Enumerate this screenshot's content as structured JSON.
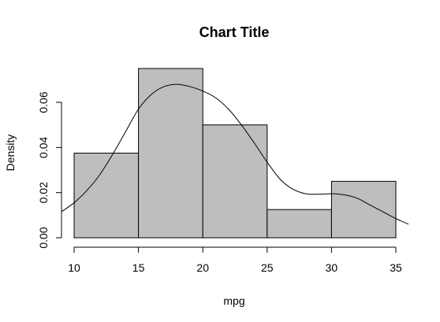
{
  "chart_data": {
    "type": "bar",
    "subtype": "histogram-with-density",
    "title": "Chart Title",
    "xlabel": "mpg",
    "ylabel": "Density",
    "bins": [
      {
        "x0": 10,
        "x1": 15,
        "density": 0.0375
      },
      {
        "x0": 15,
        "x1": 20,
        "density": 0.075
      },
      {
        "x0": 20,
        "x1": 25,
        "density": 0.05
      },
      {
        "x0": 25,
        "x1": 30,
        "density": 0.0125
      },
      {
        "x0": 30,
        "x1": 35,
        "density": 0.025
      }
    ],
    "x_ticks": [
      10,
      15,
      20,
      25,
      30,
      35
    ],
    "y_ticks": [
      0.0,
      0.02,
      0.04,
      0.06
    ],
    "y_tick_labels": [
      "0.00",
      "0.02",
      "0.04",
      "0.06"
    ],
    "xlim": [
      10,
      35
    ],
    "ylim": [
      0,
      0.075
    ],
    "density_curve": {
      "x": [
        9.0,
        10.0,
        11.0,
        12.0,
        13.0,
        14.0,
        15.0,
        16.0,
        17.0,
        18.0,
        19.0,
        20.0,
        21.0,
        22.0,
        23.0,
        24.0,
        25.0,
        26.0,
        27.0,
        28.0,
        29.0,
        30.0,
        31.0,
        32.0,
        33.0,
        34.0,
        35.0,
        36.0
      ],
      "y": [
        0.0115,
        0.0155,
        0.021,
        0.028,
        0.037,
        0.047,
        0.057,
        0.0635,
        0.067,
        0.068,
        0.067,
        0.065,
        0.062,
        0.057,
        0.05,
        0.042,
        0.0335,
        0.026,
        0.0215,
        0.0195,
        0.0193,
        0.0195,
        0.019,
        0.0175,
        0.0145,
        0.0115,
        0.0085,
        0.006
      ]
    },
    "grid": false,
    "legend": "none"
  }
}
